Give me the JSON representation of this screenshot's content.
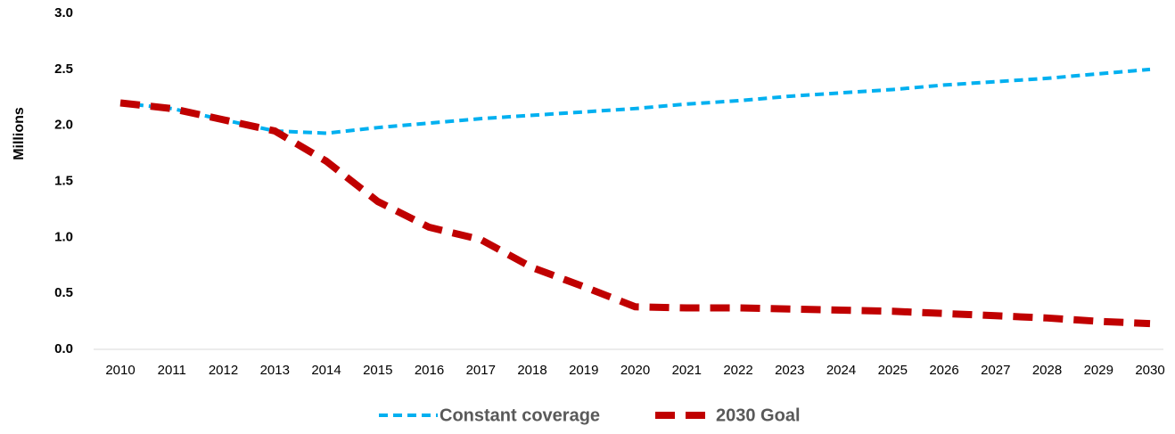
{
  "chart_data": {
    "type": "line",
    "y_label": "Millions",
    "x": [
      "2010",
      "2011",
      "2012",
      "2013",
      "2014",
      "2015",
      "2016",
      "2017",
      "2018",
      "2019",
      "2020",
      "2021",
      "2022",
      "2023",
      "2024",
      "2025",
      "2026",
      "2027",
      "2028",
      "2029",
      "2030"
    ],
    "series": [
      {
        "name": "Constant coverage",
        "color": "#00b0f0",
        "values": [
          2.2,
          2.15,
          2.05,
          1.95,
          1.93,
          1.98,
          2.02,
          2.06,
          2.09,
          2.12,
          2.15,
          2.19,
          2.22,
          2.26,
          2.29,
          2.32,
          2.36,
          2.39,
          2.42,
          2.46,
          2.5
        ]
      },
      {
        "name": "2030 Goal",
        "color": "#c00000",
        "values": [
          2.2,
          2.15,
          2.05,
          1.95,
          1.68,
          1.32,
          1.09,
          0.98,
          0.73,
          0.56,
          0.38,
          0.37,
          0.37,
          0.36,
          0.35,
          0.34,
          0.32,
          0.3,
          0.28,
          0.25,
          0.23
        ]
      }
    ],
    "ylim": [
      0,
      3
    ],
    "yticks": [
      {
        "value": 0,
        "label": "0.0"
      },
      0.5,
      {
        "value": 1,
        "label": "1.0"
      },
      1.5,
      {
        "value": 2,
        "label": "2.0"
      },
      2.5,
      {
        "value": 3,
        "label": "3.0"
      }
    ],
    "grid": false,
    "legend": "bottom"
  }
}
